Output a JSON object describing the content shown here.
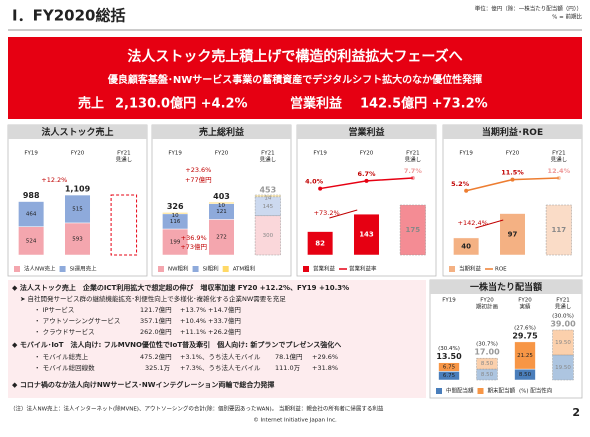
{
  "header": {
    "title": "Ⅰ．FY2020総括",
    "unit_note": "単位：億円（除：一株当たり配当額（円））",
    "pct_note": "% = 前期比"
  },
  "banner": {
    "headline": "法人ストック売上積上げで構造的利益拡大フェーズへ",
    "subline": "優良顧客基盤･NWサービス事業の蓄積資産でデジタルシフト拡大のなか優位性発揮",
    "sales_label": "売上",
    "sales_value": "2,130.0億円 +4.2%",
    "op_label": "営業利益",
    "op_value": "142.5億円 +73.2%"
  },
  "highlights": {
    "stock": {
      "heading": "◆ 法人ストック売上　企業のICT利用拡大で想定超の伸び　増収率加速 FY20 +12.2%、FY19 +10.3%",
      "sub": "➤ 自社開発サービス群の継続機能拡充･利便性向上で多様化･複雑化する企業NW需要を充足",
      "items": [
        [
          "・ IPサービス",
          "121.7億円",
          "+13.7%",
          "+14.7億円"
        ],
        [
          "・ アウトソーシングサービス",
          "357.1億円",
          "+10.4%",
          "+33.7億円"
        ],
        [
          "・ クラウドサービス",
          "262.0億円",
          "+11.1%",
          "+26.2億円"
        ]
      ]
    },
    "mobile": {
      "heading": "◆ モバイル･IoT　法人向け: フルMVNO優位性でIoT普及牽引　個人向け: 新プランでプレゼンス強化へ",
      "items": [
        [
          "・ モバイル総売上",
          "475.2億円",
          "+3.1%、うち法人モバイル",
          "78.1億円",
          "+29.6%"
        ],
        [
          "・ モバイル総回線数",
          "325.1万",
          "+7.3%、うち法人モバイル",
          "111.0万",
          "+31.8%"
        ]
      ]
    },
    "corona": "◆ コロナ禍のなか法人向けNWサービス･NWインテグレーション両輪で総合力発揮"
  },
  "footer": {
    "note": "（注）法人NW売上：法人インターネット(除MVNE)、アウトソーシングの合計(除：個別要因あったWAN)。 当期利益：親会社の所有者に帰属する利益",
    "copyright": "© Internet Initiative Japan Inc.",
    "page": "2"
  },
  "chart_data": [
    {
      "type": "bar",
      "stacked": true,
      "title": "法人ストック売上",
      "categories": [
        "FY19",
        "FY20",
        "FY21"
      ],
      "category_notes": [
        null,
        null,
        "見通し"
      ],
      "faded_categories": [
        2
      ],
      "series": [
        {
          "name": "法人NW売上",
          "color": "#f4a6ae",
          "values": [
            524,
            593,
            null
          ]
        },
        {
          "name": "SI運用売上",
          "color": "#8eaadb",
          "values": [
            464,
            515,
            null
          ]
        }
      ],
      "totals": [
        988,
        1109,
        null
      ],
      "total_labels": [
        "988",
        "1,109",
        null
      ],
      "annotations": [
        "+12.2%"
      ]
    },
    {
      "type": "bar",
      "stacked": true,
      "title": "売上総利益",
      "categories": [
        "FY19",
        "FY20",
        "FY21"
      ],
      "category_notes": [
        null,
        null,
        "見通し"
      ],
      "faded_categories": [
        2
      ],
      "series": [
        {
          "name": "NW粗利",
          "color": "#f4a6ae",
          "values": [
            199,
            272,
            300
          ]
        },
        {
          "name": "SI粗利",
          "color": "#8eaadb",
          "values": [
            116,
            121,
            145
          ]
        },
        {
          "name": "ATM粗利",
          "color": "#ffd966",
          "values": [
            10,
            10,
            14
          ]
        }
      ],
      "totals": [
        326,
        403,
        453
      ],
      "annotations": [
        "+23.6%",
        "+77億円",
        "+36.9%",
        "+73億円"
      ]
    },
    {
      "type": "bar",
      "title": "営業利益",
      "categories": [
        "FY19",
        "FY20",
        "FY21"
      ],
      "category_notes": [
        null,
        null,
        "見通し"
      ],
      "faded_categories": [
        2
      ],
      "series": [
        {
          "name": "営業利益",
          "color": "#e60012",
          "values": [
            82,
            143,
            175
          ]
        },
        {
          "name": "営業利益率",
          "type": "line",
          "axis": "y2",
          "color": "#e60012",
          "values": [
            4.0,
            6.7,
            7.7
          ],
          "value_labels": [
            "4.0%",
            "6.7%",
            "7.7%"
          ]
        }
      ],
      "annotations": [
        "+73.2%"
      ]
    },
    {
      "type": "bar",
      "title": "当期利益･ROE",
      "categories": [
        "FY19",
        "FY20",
        "FY21"
      ],
      "category_notes": [
        null,
        null,
        "見通し"
      ],
      "faded_categories": [
        2
      ],
      "series": [
        {
          "name": "当期利益",
          "color": "#f4b183",
          "values": [
            40,
            97,
            117
          ]
        },
        {
          "name": "ROE",
          "type": "line",
          "axis": "y2",
          "color": "#ed7d31",
          "values": [
            5.2,
            11.5,
            12.4
          ],
          "value_labels": [
            "5.2%",
            "11.5%",
            "12.4%"
          ]
        }
      ],
      "annotations": [
        "+142.4%"
      ]
    },
    {
      "type": "bar",
      "stacked": true,
      "title": "一株当たり配当額",
      "categories": [
        "FY19",
        "FY20",
        "FY20",
        "FY21"
      ],
      "category_notes": [
        null,
        "期初計画",
        "実績",
        "見通し"
      ],
      "faded_categories": [
        1,
        3
      ],
      "series": [
        {
          "name": "中間配当額",
          "color": "#4a7ebb",
          "values": [
            6.75,
            8.5,
            8.5,
            19.5
          ],
          "value_labels": [
            "6.75",
            "8.50",
            "8.50",
            "19.50"
          ]
        },
        {
          "name": "期末配当額",
          "color": "#f79646",
          "values": [
            6.75,
            8.5,
            21.25,
            19.5
          ],
          "value_labels": [
            "6.75",
            "8.50",
            "21.25",
            "19.50"
          ]
        }
      ],
      "totals": [
        13.5,
        17,
        29.75,
        39
      ],
      "total_labels": [
        "13.50",
        "17.00",
        "29.75",
        "39.00"
      ],
      "payout_ratios": [
        30.4,
        30.7,
        27.6,
        30.0
      ],
      "payout_ratio_labels": [
        "(30.4%)",
        "(30.7%)",
        "(27.6%)",
        "(30.0%)"
      ],
      "payout_legend": "(%) 配当性向"
    }
  ]
}
